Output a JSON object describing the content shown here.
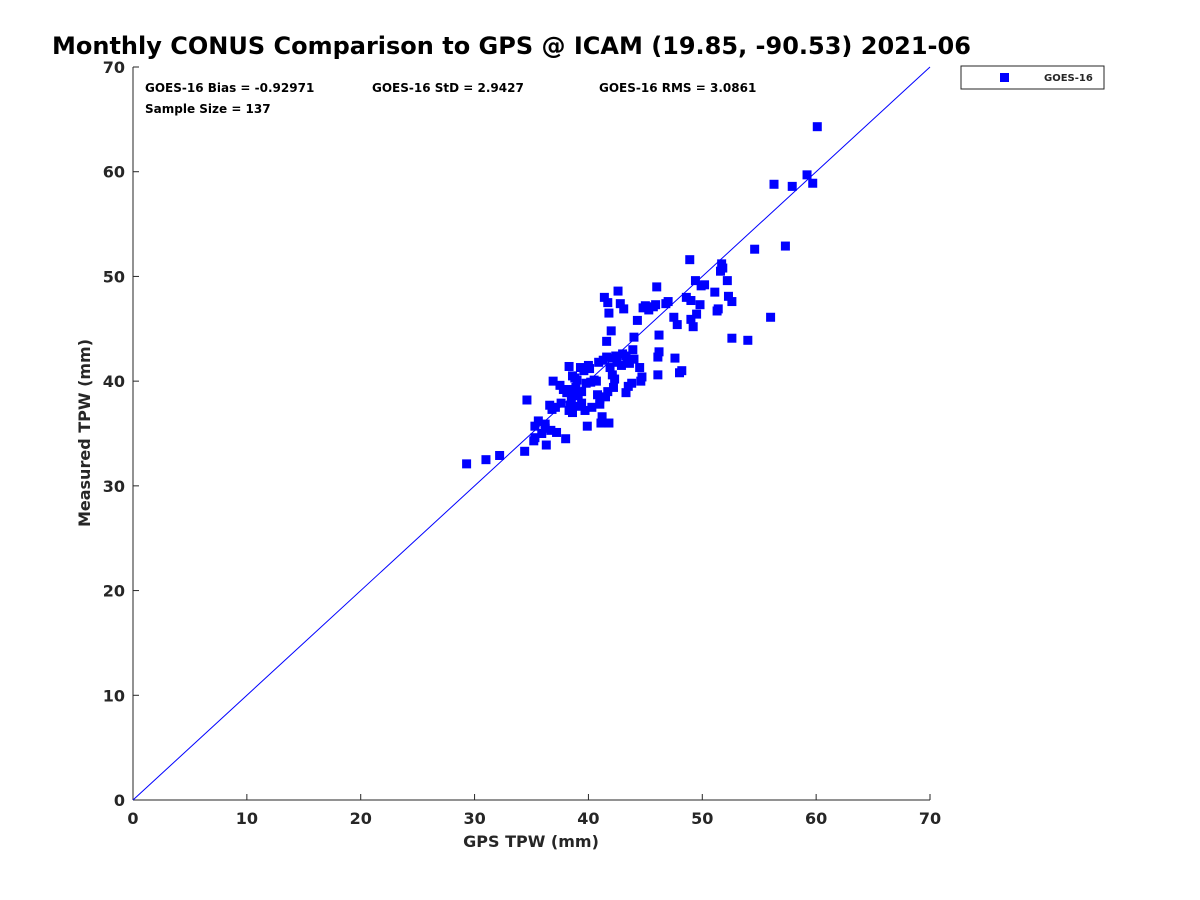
{
  "chart_data": {
    "type": "scatter",
    "title": "Monthly CONUS Comparison to GPS @ ICAM (19.85, -90.53) 2021-06",
    "xlabel": "GPS TPW (mm)",
    "ylabel": "Measured TPW (mm)",
    "xlim": [
      0,
      70
    ],
    "ylim": [
      0,
      70
    ],
    "xticks": [
      0,
      10,
      20,
      30,
      40,
      50,
      60,
      70
    ],
    "yticks": [
      0,
      10,
      20,
      30,
      40,
      50,
      60,
      70
    ],
    "grid": false,
    "legend_position": "outside-top-right",
    "stats": {
      "bias": "GOES-16 Bias = -0.92971",
      "std": "GOES-16 StD = 2.9427",
      "rms": "GOES-16 RMS = 3.0861",
      "sample_size": "Sample Size = 137"
    },
    "reference_line": {
      "from": [
        0,
        0
      ],
      "to": [
        70,
        70
      ],
      "color": "#0000ff"
    },
    "series": [
      {
        "name": "GOES-16",
        "color": "#0000ff",
        "marker": "square",
        "points": [
          [
            29.3,
            32.1
          ],
          [
            31.0,
            32.5
          ],
          [
            32.2,
            32.9
          ],
          [
            34.4,
            33.3
          ],
          [
            34.6,
            38.2
          ],
          [
            35.2,
            34.3
          ],
          [
            35.3,
            34.6
          ],
          [
            35.3,
            35.7
          ],
          [
            35.6,
            36.2
          ],
          [
            35.9,
            35.0
          ],
          [
            36.2,
            35.5
          ],
          [
            36.3,
            33.9
          ],
          [
            36.6,
            37.7
          ],
          [
            36.7,
            35.3
          ],
          [
            36.8,
            37.3
          ],
          [
            36.9,
            40.0
          ],
          [
            37.1,
            37.5
          ],
          [
            37.2,
            35.1
          ],
          [
            37.5,
            39.6
          ],
          [
            37.6,
            37.9
          ],
          [
            38.0,
            34.5
          ],
          [
            38.1,
            38.9
          ],
          [
            38.2,
            39.2
          ],
          [
            38.3,
            41.4
          ],
          [
            38.3,
            37.2
          ],
          [
            38.4,
            37.7
          ],
          [
            38.5,
            38.3
          ],
          [
            38.6,
            40.5
          ],
          [
            38.6,
            37.0
          ],
          [
            38.8,
            38.7
          ],
          [
            38.9,
            39.4
          ],
          [
            39.0,
            40.1
          ],
          [
            39.1,
            37.6
          ],
          [
            39.1,
            38.6
          ],
          [
            39.3,
            41.3
          ],
          [
            39.4,
            37.9
          ],
          [
            39.6,
            41.0
          ],
          [
            39.7,
            37.2
          ],
          [
            39.8,
            39.8
          ],
          [
            39.9,
            35.7
          ],
          [
            40.0,
            41.5
          ],
          [
            40.1,
            41.2
          ],
          [
            40.2,
            39.9
          ],
          [
            40.3,
            37.5
          ],
          [
            40.7,
            40.0
          ],
          [
            40.8,
            38.7
          ],
          [
            40.9,
            41.8
          ],
          [
            41.0,
            37.8
          ],
          [
            41.0,
            38.3
          ],
          [
            41.1,
            36.0
          ],
          [
            41.2,
            36.6
          ],
          [
            41.3,
            42.0
          ],
          [
            41.4,
            48.0
          ],
          [
            41.5,
            38.5
          ],
          [
            41.6,
            43.8
          ],
          [
            41.7,
            47.5
          ],
          [
            41.7,
            39.0
          ],
          [
            41.8,
            36.0
          ],
          [
            41.8,
            46.5
          ],
          [
            41.9,
            41.3
          ],
          [
            42.0,
            44.8
          ],
          [
            42.1,
            42.2
          ],
          [
            42.1,
            40.6
          ],
          [
            42.2,
            39.4
          ],
          [
            42.3,
            40.2
          ],
          [
            42.4,
            42.4
          ],
          [
            42.6,
            48.6
          ],
          [
            42.8,
            47.4
          ],
          [
            42.9,
            41.5
          ],
          [
            43.0,
            42.6
          ],
          [
            43.1,
            46.9
          ],
          [
            43.3,
            38.9
          ],
          [
            43.4,
            42.0
          ],
          [
            43.5,
            39.5
          ],
          [
            43.6,
            41.7
          ],
          [
            43.8,
            39.8
          ],
          [
            43.9,
            43.0
          ],
          [
            44.0,
            44.2
          ],
          [
            44.3,
            45.8
          ],
          [
            44.5,
            41.3
          ],
          [
            44.6,
            40.0
          ],
          [
            44.7,
            40.4
          ],
          [
            44.8,
            47.0
          ],
          [
            45.3,
            46.8
          ],
          [
            45.7,
            47.1
          ],
          [
            45.9,
            47.3
          ],
          [
            46.0,
            49.0
          ],
          [
            46.1,
            40.6
          ],
          [
            46.1,
            42.3
          ],
          [
            46.2,
            44.4
          ],
          [
            46.2,
            42.8
          ],
          [
            46.8,
            47.4
          ],
          [
            47.0,
            47.6
          ],
          [
            47.5,
            46.1
          ],
          [
            47.6,
            42.2
          ],
          [
            47.8,
            45.4
          ],
          [
            48.0,
            40.8
          ],
          [
            48.2,
            41.0
          ],
          [
            48.6,
            48.0
          ],
          [
            48.9,
            51.6
          ],
          [
            49.0,
            47.7
          ],
          [
            49.0,
            45.9
          ],
          [
            49.2,
            45.2
          ],
          [
            49.4,
            49.6
          ],
          [
            49.5,
            46.4
          ],
          [
            49.8,
            47.3
          ],
          [
            49.9,
            49.1
          ],
          [
            50.2,
            49.2
          ],
          [
            51.1,
            48.5
          ],
          [
            51.3,
            46.7
          ],
          [
            51.4,
            46.9
          ],
          [
            51.6,
            50.5
          ],
          [
            51.7,
            51.2
          ],
          [
            51.8,
            50.8
          ],
          [
            52.2,
            49.6
          ],
          [
            52.3,
            48.1
          ],
          [
            52.6,
            47.6
          ],
          [
            52.6,
            44.1
          ],
          [
            54.0,
            43.9
          ],
          [
            54.6,
            52.6
          ],
          [
            56.0,
            46.1
          ],
          [
            56.3,
            58.8
          ],
          [
            57.3,
            52.9
          ],
          [
            57.9,
            58.6
          ],
          [
            59.2,
            59.7
          ],
          [
            59.7,
            58.9
          ],
          [
            60.1,
            64.3
          ],
          [
            39.4,
            39.0
          ],
          [
            40.5,
            40.1
          ],
          [
            42.5,
            41.8
          ],
          [
            36.2,
            35.9
          ],
          [
            44.0,
            42.1
          ],
          [
            45.0,
            47.2
          ],
          [
            38.8,
            40.3
          ],
          [
            41.6,
            42.3
          ],
          [
            43.3,
            42.4
          ],
          [
            37.8,
            39.2
          ]
        ]
      }
    ]
  }
}
